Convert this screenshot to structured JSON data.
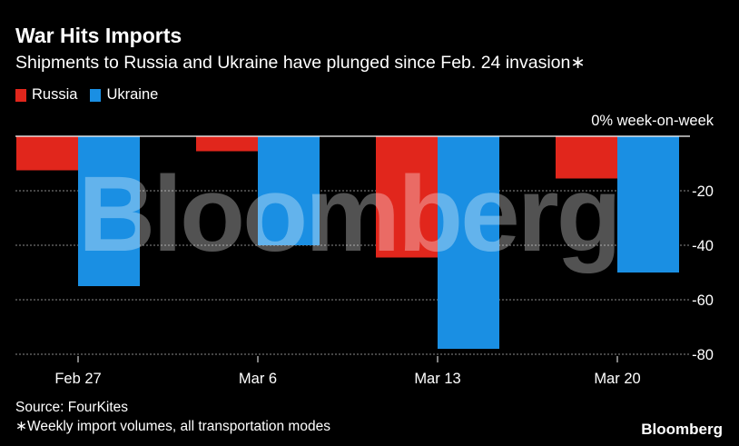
{
  "header": {
    "title": "War Hits Imports",
    "subtitle": "Shipments to Russia and Ukraine have plunged since Feb. 24 invasion∗"
  },
  "legend": [
    {
      "name": "Russia",
      "color": "#e1261c"
    },
    {
      "name": "Ukraine",
      "color": "#1a8fe3"
    }
  ],
  "footer": {
    "source": "Source: FourKites",
    "note": "∗Weekly import volumes, all transportation modes",
    "brand": "Bloomberg"
  },
  "watermark": "Bloomberg",
  "chart_data": {
    "type": "bar",
    "title": "War Hits Imports",
    "subtitle": "Shipments to Russia and Ukraine have plunged since Feb. 24 invasion∗",
    "categories": [
      "Feb 27",
      "Mar 6",
      "Mar 13",
      "Mar 20"
    ],
    "series": [
      {
        "name": "Russia",
        "color": "#e1261c",
        "values": [
          -12.5,
          -5.5,
          -44.5,
          -15.5
        ]
      },
      {
        "name": "Ukraine",
        "color": "#1a8fe3",
        "values": [
          -55,
          -40,
          -78,
          -50
        ]
      }
    ],
    "ylim": [
      -80,
      0
    ],
    "yticks": [
      0,
      -20,
      -40,
      -60,
      -80
    ],
    "ytick_labels": [
      "0% week-on-week",
      "-20",
      "-40",
      "-60",
      "-80"
    ],
    "ylabel": "% week-on-week",
    "xlabel": "",
    "grid": true,
    "legend_position": "top-left"
  }
}
